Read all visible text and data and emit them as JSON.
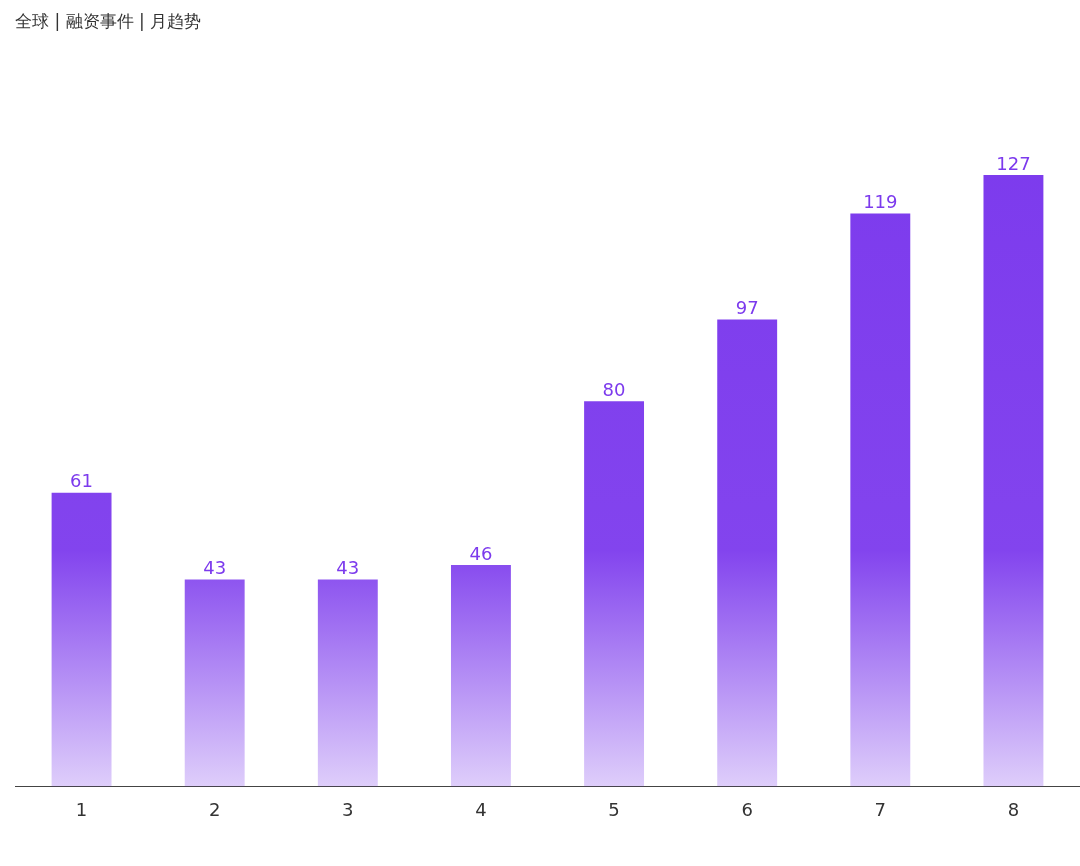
{
  "chart_data": {
    "type": "bar",
    "title": "全球 | 融资事件 | 月趋势",
    "categories": [
      "1",
      "2",
      "3",
      "4",
      "5",
      "6",
      "7",
      "8"
    ],
    "values": [
      61,
      43,
      43,
      46,
      80,
      97,
      119,
      127
    ],
    "color": "#7c3aed",
    "data_labels": true,
    "legend": false
  }
}
